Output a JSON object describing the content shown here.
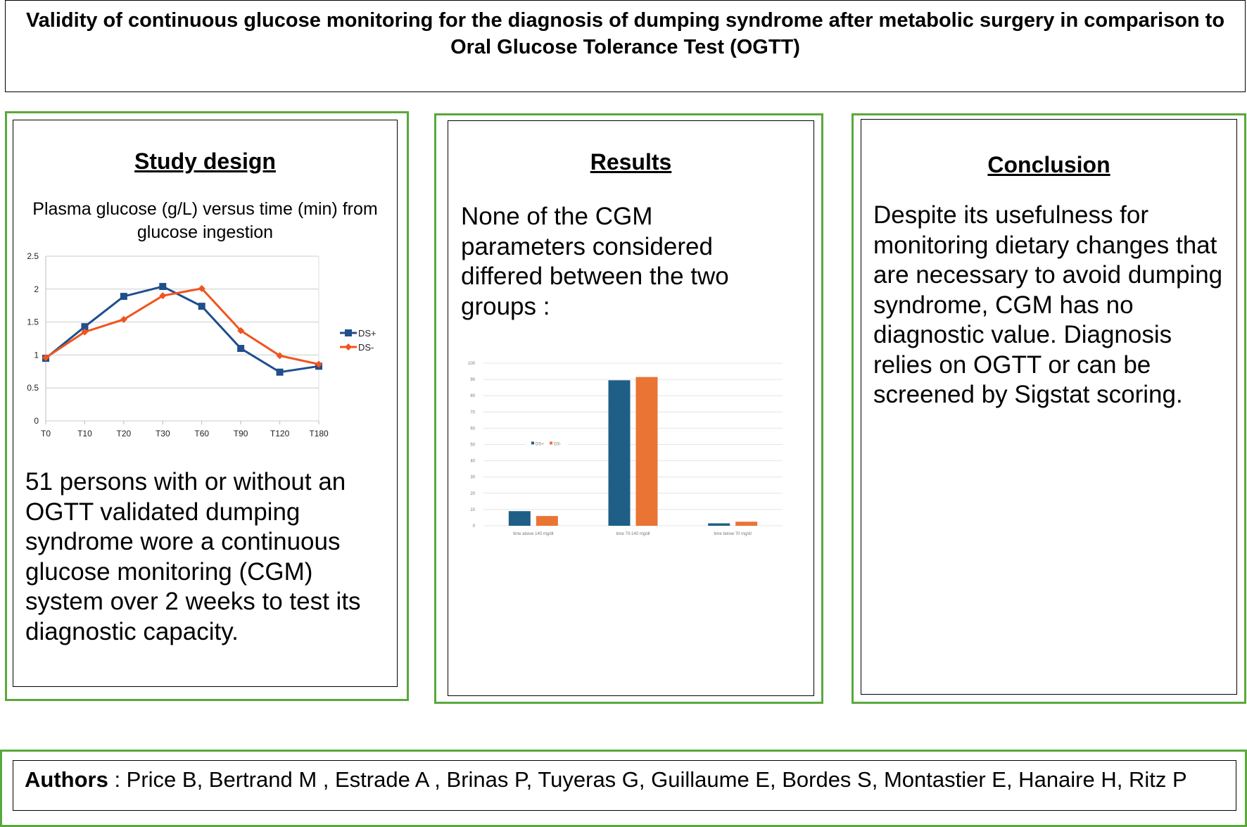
{
  "title": "Validity of continuous glucose monitoring for the diagnosis of dumping syndrome after metabolic surgery in comparison to Oral Glucose Tolerance Test (OGTT)",
  "study": {
    "heading": "Study design",
    "caption": "Plasma glucose (g/L) versus time (min) from glucose ingestion",
    "text": "51 persons with or without an OGTT validated dumping syndrome wore a continuous glucose monitoring (CGM) system over 2 weeks to test its diagnostic capacity."
  },
  "results": {
    "heading": "Results",
    "text": "None of the CGM parameters considered differed between the two groups :"
  },
  "conclusion": {
    "heading": "Conclusion",
    "text": "Despite its usefulness for monitoring dietary changes that are necessary to avoid dumping syndrome, CGM has no diagnostic value. Diagnosis relies on OGTT or can be screened by Sigstat scoring."
  },
  "authors": {
    "label": "Authors",
    "text": " : Price B, Bertrand M , Estrade A , Brinas P, Tuyeras G, Guillaume E, Bordes S, Montastier E, Hanaire H, Ritz P"
  },
  "chart_data": [
    {
      "type": "line",
      "title": "Plasma glucose (g/L) versus time (min) from glucose ingestion",
      "categories": [
        "T0",
        "T10",
        "T20",
        "T30",
        "T60",
        "T90",
        "T120",
        "T180"
      ],
      "series": [
        {
          "name": "DS+",
          "color": "#1f4e8c",
          "values": [
            0.95,
            1.43,
            1.89,
            2.04,
            1.74,
            1.1,
            0.74,
            0.83
          ]
        },
        {
          "name": "DS-",
          "color": "#f0541e",
          "values": [
            0.96,
            1.35,
            1.54,
            1.9,
            2.01,
            1.37,
            0.99,
            0.86
          ]
        }
      ],
      "ylim": [
        0,
        2.5
      ],
      "yticks": [
        "0",
        "0.5",
        "1",
        "1.5",
        "2",
        "2.5"
      ],
      "grid": true,
      "legend": "right"
    },
    {
      "type": "bar",
      "categories": [
        "time above 140 mg/dl",
        "time 70-140 mg/dl",
        "time below 70 mg/dl"
      ],
      "series": [
        {
          "name": "DS+",
          "color": "#1f5f86",
          "values": [
            9,
            89.5,
            1.5
          ]
        },
        {
          "name": "DS-",
          "color": "#ea7433",
          "values": [
            6,
            91.5,
            2.5
          ]
        }
      ],
      "ylim": [
        0,
        100
      ],
      "yticks": [
        "0",
        "10",
        "20",
        "30",
        "40",
        "50",
        "60",
        "70",
        "80",
        "90",
        "100"
      ],
      "grid": true,
      "legend": "upper-left"
    }
  ]
}
